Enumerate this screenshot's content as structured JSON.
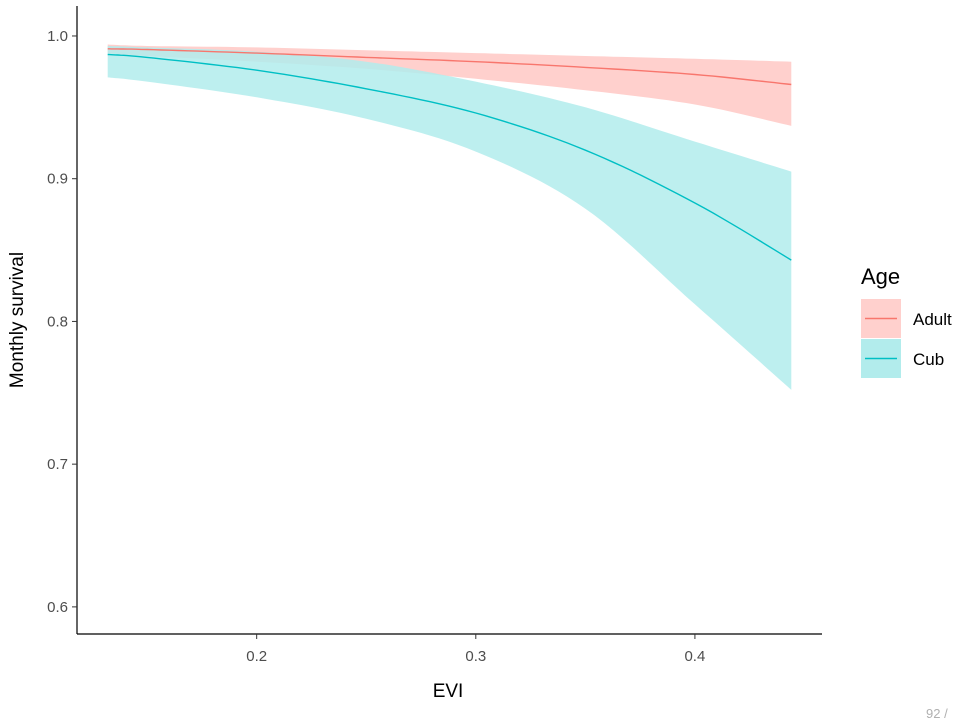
{
  "chart_data": {
    "type": "line",
    "title": "",
    "xlabel": "EVI",
    "ylabel": "Monthly survival",
    "xlim": [
      0.118,
      0.458
    ],
    "ylim": [
      0.581,
      1.021
    ],
    "x_ticks": [
      0.2,
      0.3,
      0.4
    ],
    "y_ticks": [
      0.6,
      0.7,
      0.8,
      0.9,
      1.0
    ],
    "x_tick_labels": [
      "0.2",
      "0.3",
      "0.4"
    ],
    "y_tick_labels": [
      "0.6",
      "0.7",
      "0.8",
      "0.9",
      "1.0"
    ],
    "grid": false,
    "legend": {
      "title": "Age",
      "placement": "right"
    },
    "x": [
      0.132,
      0.15,
      0.2,
      0.25,
      0.3,
      0.35,
      0.4,
      0.444
    ],
    "series": [
      {
        "name": "Adult",
        "color": "#F8766D",
        "fill": "#FFD0CD",
        "values": [
          0.991,
          0.9905,
          0.988,
          0.985,
          0.982,
          0.978,
          0.973,
          0.966
        ],
        "lower": [
          0.988,
          0.986,
          0.982,
          0.977,
          0.97,
          0.962,
          0.952,
          0.937
        ],
        "upper": [
          0.994,
          0.993,
          0.992,
          0.99,
          0.988,
          0.986,
          0.984,
          0.982
        ]
      },
      {
        "name": "Cub",
        "color": "#00BFC4",
        "fill": "#B2ECEC",
        "values": [
          0.987,
          0.985,
          0.976,
          0.963,
          0.946,
          0.92,
          0.883,
          0.843
        ],
        "lower": [
          0.971,
          0.968,
          0.957,
          0.942,
          0.919,
          0.879,
          0.812,
          0.752
        ],
        "upper": [
          0.993,
          0.992,
          0.989,
          0.982,
          0.968,
          0.95,
          0.926,
          0.905
        ]
      }
    ],
    "corner_text": "92 /"
  }
}
